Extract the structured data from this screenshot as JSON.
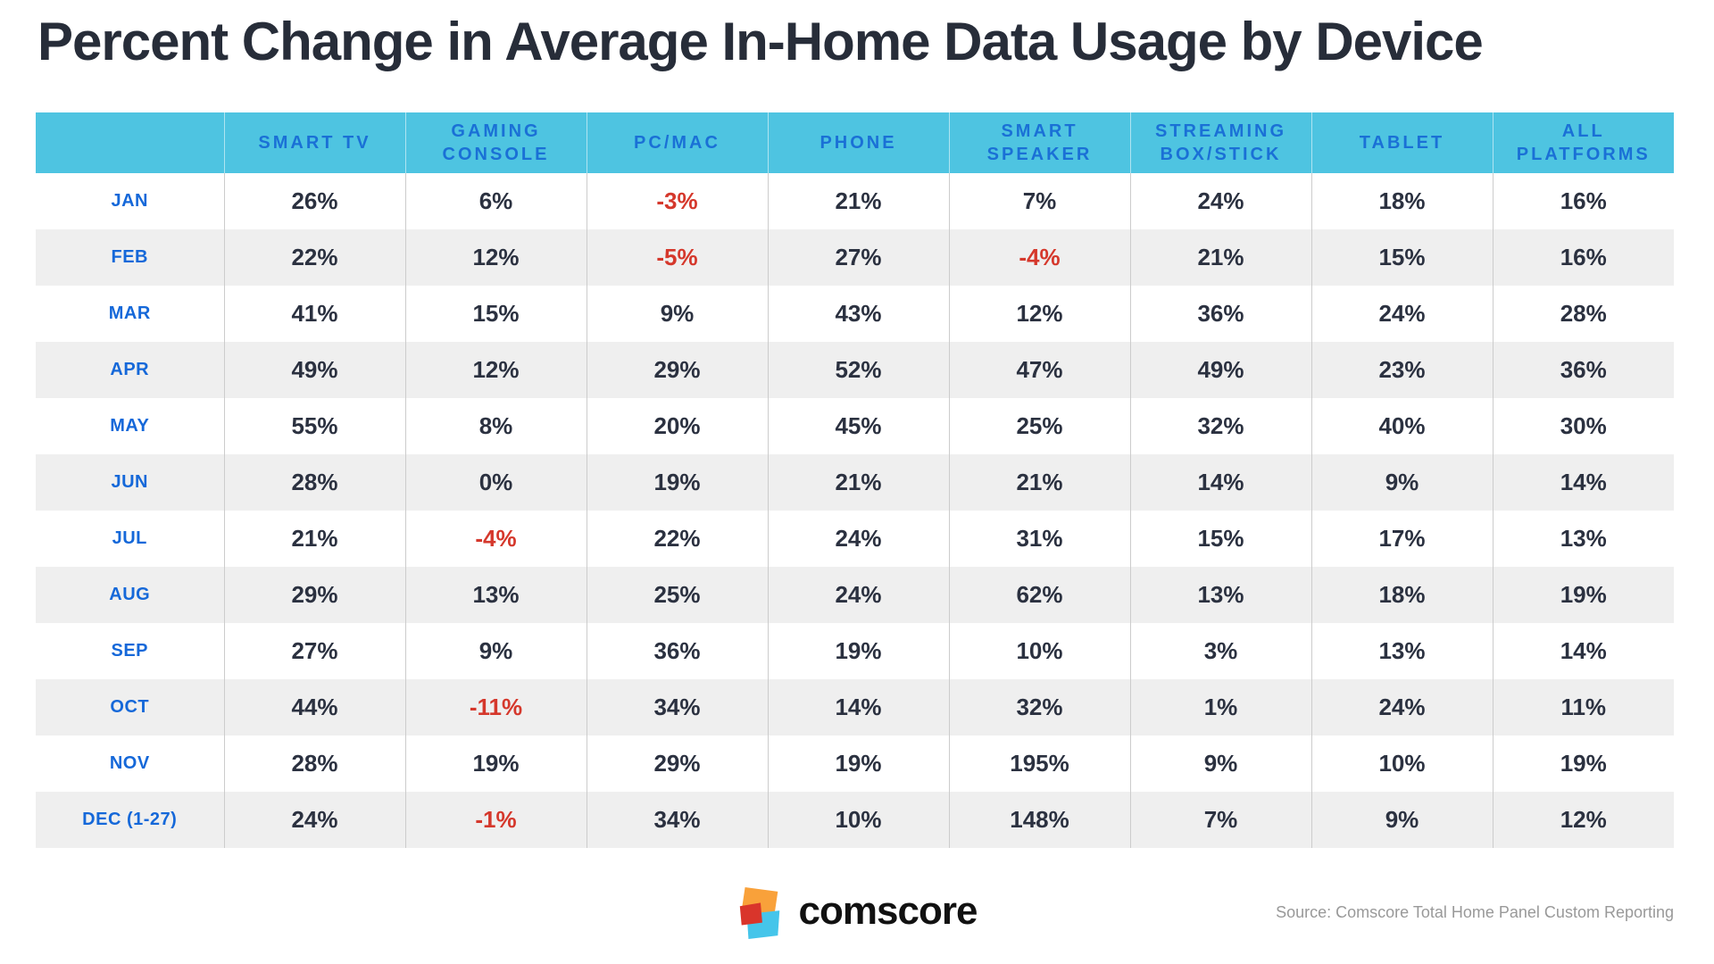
{
  "title": "Percent Change in Average In-Home Data Usage by Device",
  "chart_data": {
    "type": "table",
    "title": "Percent Change in Average In-Home Data Usage by Device",
    "unit": "percent change",
    "corner_label": "",
    "columns": [
      "SMART TV",
      "GAMING CONSOLE",
      "PC/MAC",
      "PHONE",
      "SMART SPEAKER",
      "STREAMING BOX/STICK",
      "TABLET",
      "ALL PLATFORMS"
    ],
    "months": [
      "JAN",
      "FEB",
      "MAR",
      "APR",
      "MAY",
      "JUN",
      "JUL",
      "AUG",
      "SEP",
      "OCT",
      "NOV",
      "DEC (1-27)"
    ],
    "values": [
      [
        26,
        6,
        -3,
        21,
        7,
        24,
        18,
        16
      ],
      [
        22,
        12,
        -5,
        27,
        -4,
        21,
        15,
        16
      ],
      [
        41,
        15,
        9,
        43,
        12,
        36,
        24,
        28
      ],
      [
        49,
        12,
        29,
        52,
        47,
        49,
        23,
        36
      ],
      [
        55,
        8,
        20,
        45,
        25,
        32,
        40,
        30
      ],
      [
        28,
        0,
        19,
        21,
        21,
        14,
        9,
        14
      ],
      [
        21,
        -4,
        22,
        24,
        31,
        15,
        17,
        13
      ],
      [
        29,
        13,
        25,
        24,
        62,
        13,
        18,
        19
      ],
      [
        27,
        9,
        36,
        19,
        10,
        3,
        13,
        14
      ],
      [
        44,
        -11,
        34,
        14,
        32,
        1,
        24,
        11
      ],
      [
        28,
        19,
        29,
        19,
        195,
        9,
        10,
        19
      ],
      [
        24,
        -1,
        34,
        10,
        148,
        7,
        9,
        12
      ]
    ],
    "layout": {
      "row_striping": true,
      "negative_values_in_red": true,
      "legend_position": "none"
    }
  },
  "footer": {
    "logo_text": "comscore",
    "source": "Source: Comscore Total Home Panel Custom Reporting"
  },
  "colors": {
    "header_bg": "#4ec4e1",
    "header_text": "#1a70d6",
    "month_text": "#1568d9",
    "value_text": "#2b3140",
    "negative_text": "#d5382c",
    "row_alt_bg": "#efefef",
    "grid_line": "#cccccc",
    "title_text": "#272d39",
    "source_text": "#999999",
    "logo_orange": "#f9a13a",
    "logo_red": "#d9352b",
    "logo_cyan": "#45c5ea"
  }
}
